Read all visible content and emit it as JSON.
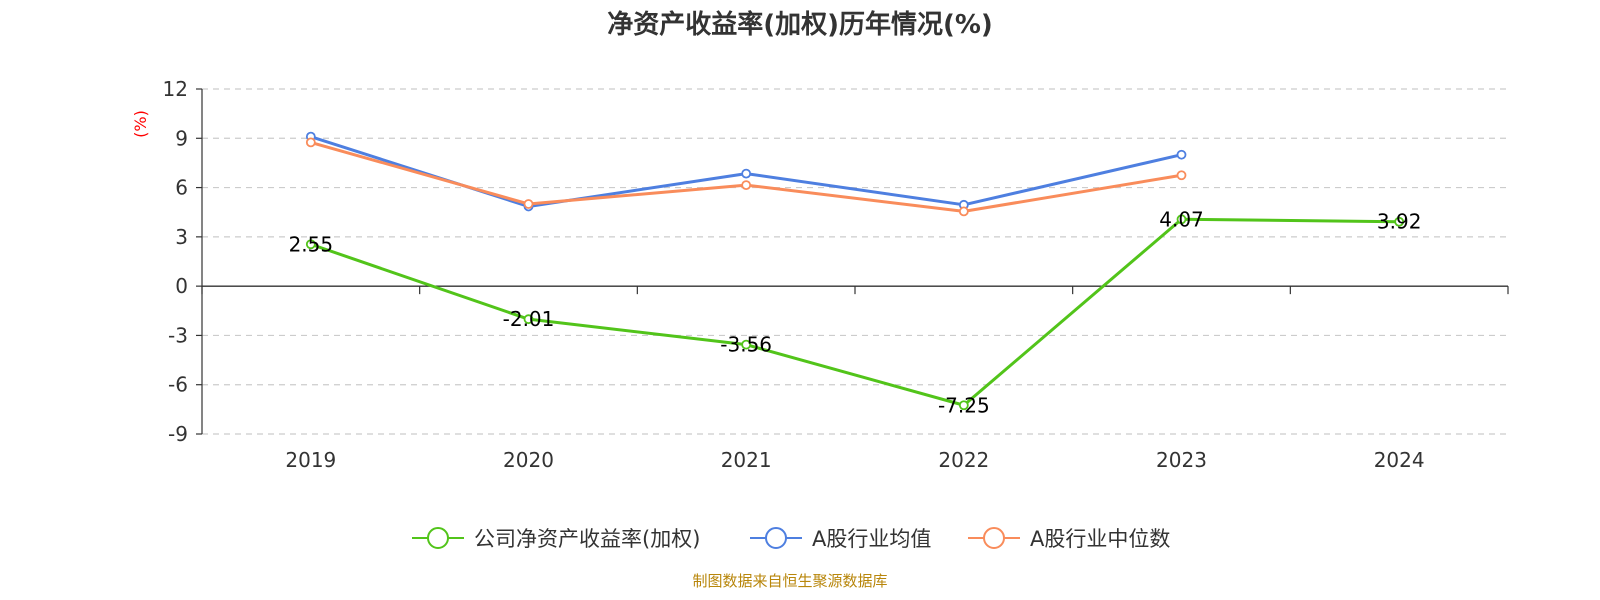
{
  "chart_data": {
    "type": "line",
    "title": "净资产收益率(加权)历年情况(%)",
    "ylabel": "(%)",
    "xlabel": "",
    "categories": [
      "2019",
      "2020",
      "2021",
      "2022",
      "2023",
      "2024"
    ],
    "ylim": [
      -9,
      12
    ],
    "yticks": [
      12,
      9,
      6,
      3,
      0,
      -3,
      -6,
      -9
    ],
    "grid": true,
    "legend_position": "bottom",
    "series": [
      {
        "name": "公司净资产收益率(加权)",
        "color": "#52c41a",
        "values": [
          2.55,
          -2.01,
          -3.56,
          -7.25,
          4.07,
          3.92
        ],
        "labels": [
          "2.55",
          "-2.01",
          "-3.56",
          "-7.25",
          "4.07",
          "3.92"
        ]
      },
      {
        "name": "A股行业均值",
        "color": "#4e7fe0",
        "values": [
          9.1,
          4.85,
          6.85,
          4.95,
          8.0,
          null
        ]
      },
      {
        "name": "A股行业中位数",
        "color": "#f98c5b",
        "values": [
          8.75,
          5.0,
          6.15,
          4.55,
          6.75,
          null
        ]
      }
    ],
    "ylabel_color": "#ff0000"
  },
  "footer": {
    "source": "制图数据来自恒生聚源数据库",
    "color": "#b8860b"
  }
}
